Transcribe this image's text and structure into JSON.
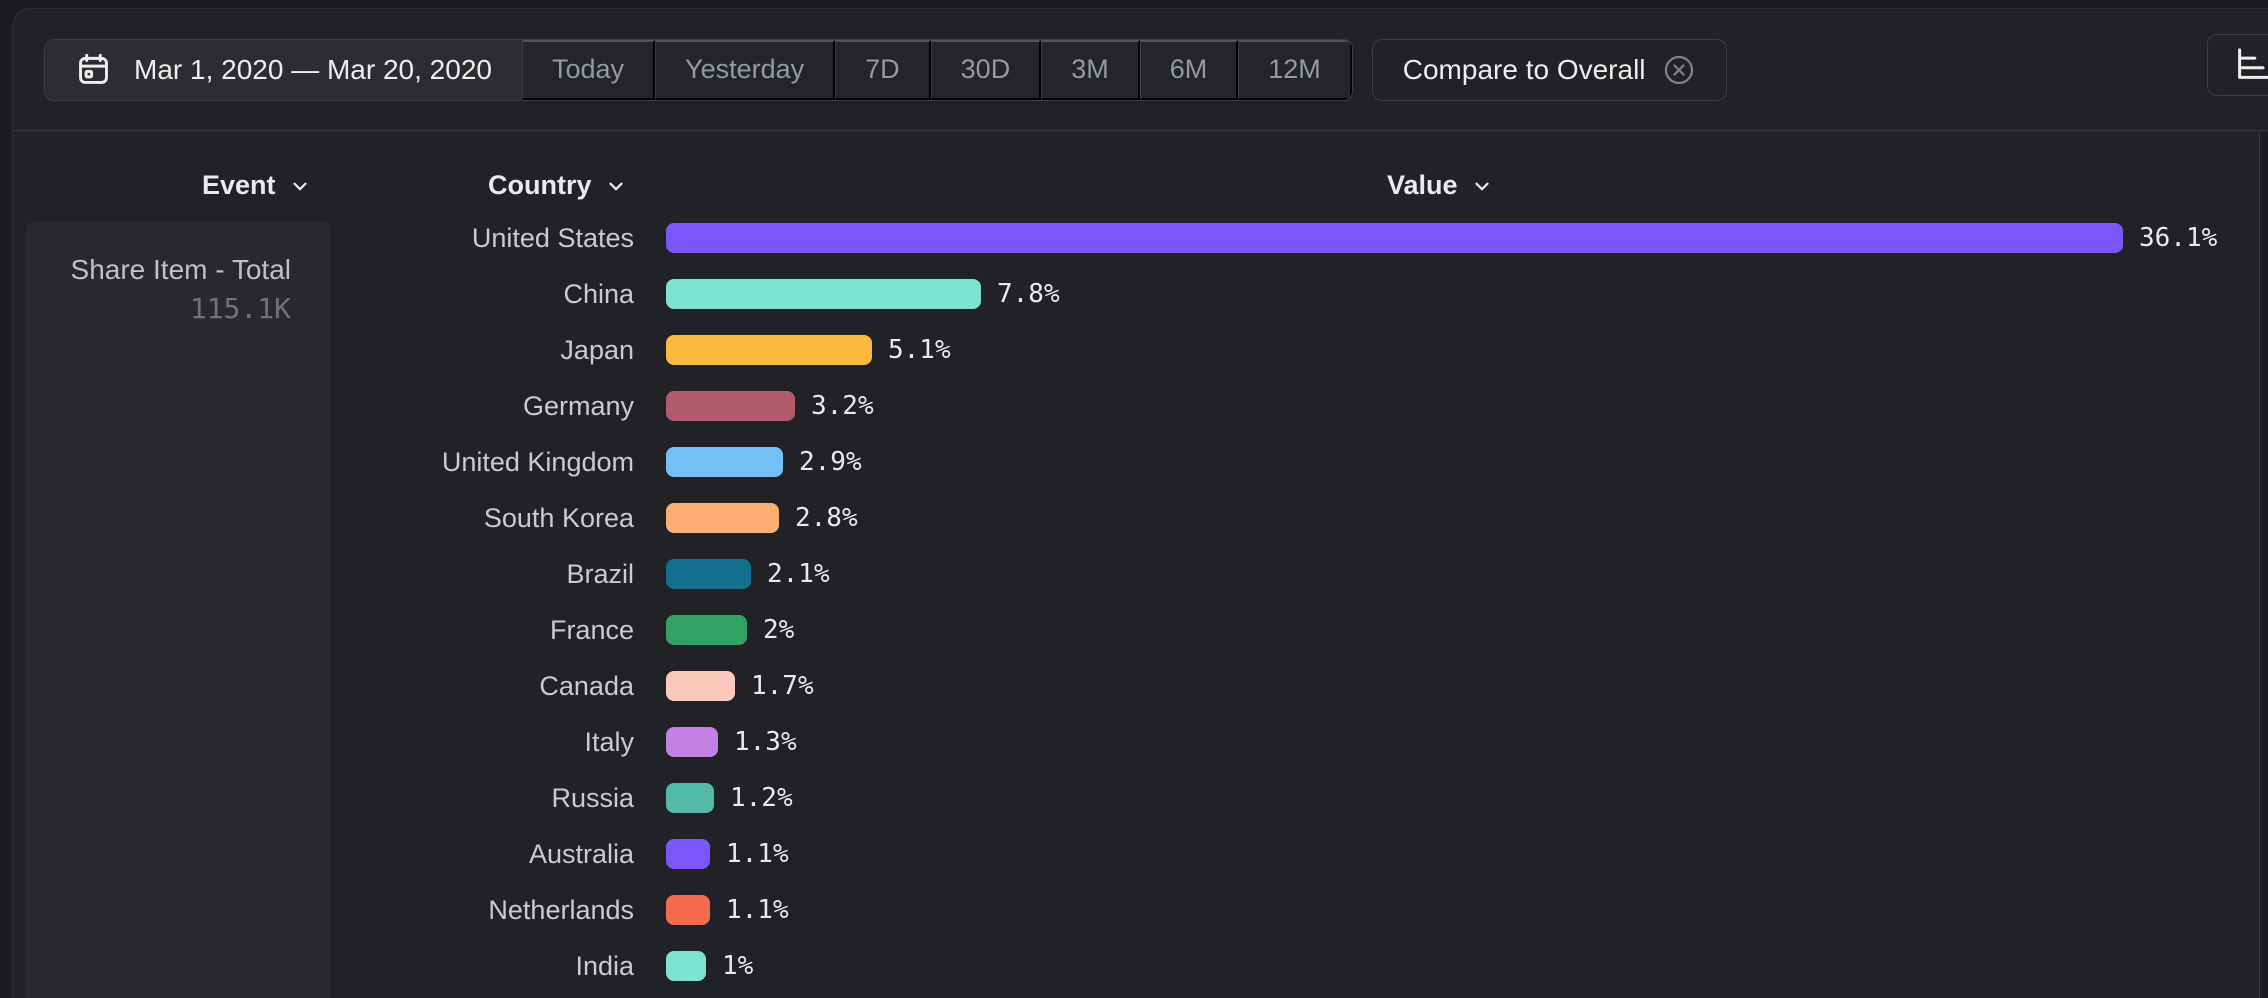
{
  "toolbar": {
    "date_range": "Mar 1, 2020 — Mar 20, 2020",
    "quick_ranges": [
      "Today",
      "Yesterday",
      "7D",
      "30D",
      "3M",
      "6M",
      "12M"
    ],
    "compare_label": "Compare to Overall"
  },
  "columns": {
    "event": "Event",
    "country": "Country",
    "value": "Value"
  },
  "event_panel": {
    "name": "Share Item - Total",
    "total": "115.1K"
  },
  "icons": {
    "calendar": "calendar-icon",
    "chevron": "chevron-down-icon",
    "dismiss_compare": "circle-x-icon",
    "chart_type": "horizontal-bar-chart-icon"
  },
  "chart_data": {
    "type": "bar",
    "orientation": "horizontal",
    "title": "Share Item - Total by Country",
    "xlabel": "Value (%)",
    "ylabel": "Country",
    "xlim": [
      0,
      36.1
    ],
    "grid": false,
    "series_event": "Share Item - Total",
    "series_total": "115.1K",
    "categories": [
      "United States",
      "China",
      "Japan",
      "Germany",
      "United Kingdom",
      "South Korea",
      "Brazil",
      "France",
      "Canada",
      "Italy",
      "Russia",
      "Australia",
      "Netherlands",
      "India"
    ],
    "values": [
      36.1,
      7.8,
      5.1,
      3.2,
      2.9,
      2.8,
      2.1,
      2,
      1.7,
      1.3,
      1.2,
      1.1,
      1.1,
      1
    ],
    "labels": [
      "36.1%",
      "7.8%",
      "5.1%",
      "3.2%",
      "2.9%",
      "2.8%",
      "2.1%",
      "2%",
      "1.7%",
      "1.3%",
      "1.2%",
      "1.1%",
      "1.1%",
      "1%"
    ],
    "bar_colors": [
      "#7c55fb",
      "#7de2d1",
      "#f8bb40",
      "#b25b6d",
      "#74c0f4",
      "#fdae73",
      "#15708f",
      "#31a164",
      "#fcc8bc",
      "#c180e2",
      "#55b9a9",
      "#7c55fb",
      "#f66a4d",
      "#7de2d1"
    ]
  }
}
